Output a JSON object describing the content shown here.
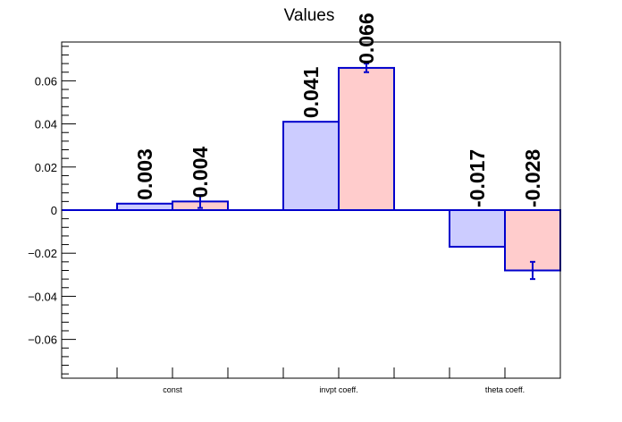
{
  "chart_data": {
    "type": "bar",
    "title": "Values",
    "xlabel": "",
    "ylabel": "",
    "categories": [
      "const",
      "invpt coeff.",
      "theta coeff."
    ],
    "series": [
      {
        "values": [
          0.003,
          0.041,
          -0.017
        ],
        "labels": [
          "0.003",
          "0.041",
          "-0.017"
        ],
        "color": "#ccccff",
        "edge_color": "#0000cc",
        "error": [
          0,
          0,
          0
        ]
      },
      {
        "values": [
          0.004,
          0.066,
          -0.028
        ],
        "labels": [
          "0.004",
          "0.066",
          "-0.028"
        ],
        "color": "#ffcccc",
        "edge_color": "#0000cc",
        "error": [
          0.003,
          0.002,
          0.004
        ]
      }
    ],
    "ylim": [
      -0.078,
      0.078
    ],
    "yticks": [
      -0.06,
      -0.04,
      -0.02,
      0,
      0.02,
      0.04,
      0.06
    ],
    "ytick_labels": [
      "−0.06",
      "−0.04",
      "−0.02",
      "0",
      "0.02",
      "0.04",
      "0.06"
    ],
    "grid": false,
    "legend": "none"
  }
}
